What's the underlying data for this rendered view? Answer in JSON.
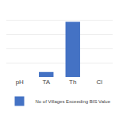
{
  "chart_data": {
    "type": "bar",
    "categories": [
      "pH",
      "TA",
      "Th",
      "Cl"
    ],
    "series": [
      {
        "name": "No of Villages Exceeding BIS Value",
        "color": "#4472C4",
        "values": [
          0,
          7,
          78,
          0
        ]
      }
    ],
    "ylim": [
      0,
      100
    ],
    "yticks": [
      0,
      20,
      40,
      60,
      80,
      100
    ],
    "grid": true,
    "legend": "bottom",
    "tick_labels": "x"
  }
}
